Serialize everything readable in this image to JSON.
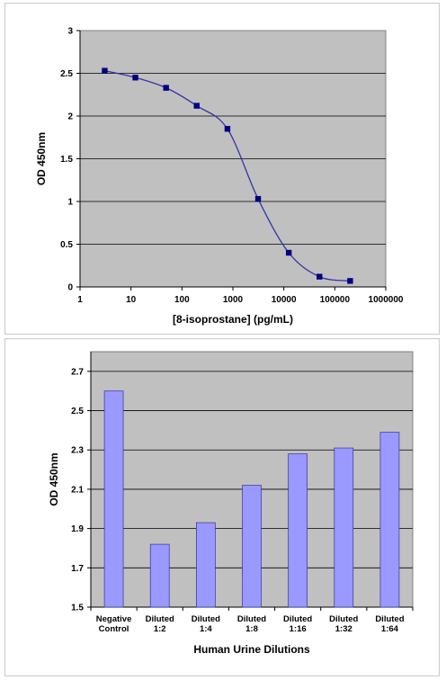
{
  "chart_data": [
    {
      "type": "line",
      "title": "",
      "xlabel": "[8-isoprostane] (pg/mL)",
      "ylabel": "OD 450nm",
      "xscale": "log",
      "xlim": [
        1,
        1000000
      ],
      "ylim": [
        0,
        3
      ],
      "x_ticks": [
        "1",
        "10",
        "100",
        "1000",
        "10000",
        "100000",
        "1000000"
      ],
      "y_ticks": [
        "0",
        "0.5",
        "1",
        "1.5",
        "2",
        "2.5",
        "3"
      ],
      "grid": "horizontal",
      "series": [
        {
          "x": [
            3.05,
            12.2,
            48.8,
            195,
            781,
            3125,
            12500,
            50000,
            200000
          ],
          "values": [
            2.53,
            2.45,
            2.33,
            2.12,
            1.85,
            1.03,
            0.4,
            0.12,
            0.07
          ]
        }
      ],
      "colors": {
        "plot_bg": "#c0c0c0",
        "line": "#3333aa",
        "marker": "#000080",
        "grid": "#000000"
      }
    },
    {
      "type": "bar",
      "title": "",
      "xlabel": "Human Urine Dilutions",
      "ylabel": "OD 450nm",
      "ylim": [
        1.5,
        2.8
      ],
      "y_ticks": [
        "1.5",
        "1.7",
        "1.9",
        "2.1",
        "2.3",
        "2.5",
        "2.7"
      ],
      "grid": "horizontal",
      "categories": [
        [
          "Negative",
          "Control"
        ],
        [
          "Diluted",
          "1:2"
        ],
        [
          "Diluted",
          "1:4"
        ],
        [
          "Diluted",
          "1:8"
        ],
        [
          "Diluted",
          "1:16"
        ],
        [
          "Diluted",
          "1:32"
        ],
        [
          "Diluted",
          "1:64"
        ]
      ],
      "values": [
        2.6,
        1.82,
        1.93,
        2.12,
        2.28,
        2.31,
        2.39
      ],
      "colors": {
        "plot_bg": "#c0c0c0",
        "bar": "#9999ff",
        "bar_edge": "#333399",
        "grid": "#000000"
      }
    }
  ]
}
